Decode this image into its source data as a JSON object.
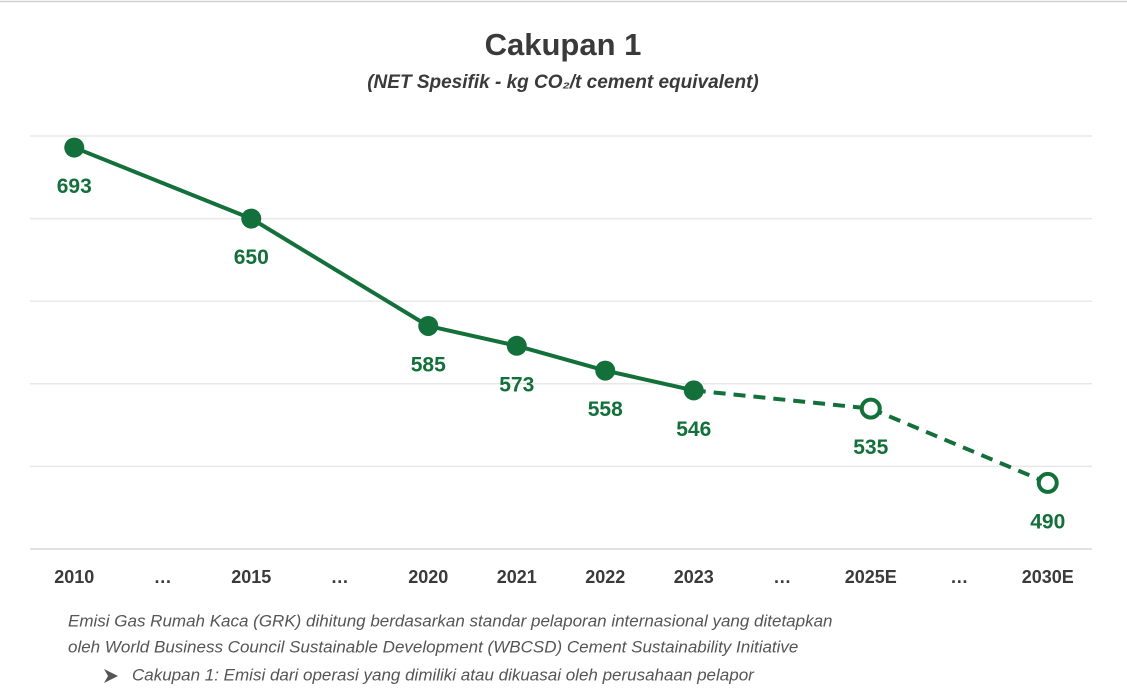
{
  "chart_data": {
    "type": "line",
    "title": "Cakupan 1",
    "subtitle": "(NET Spesifik - kg CO₂/t cement equivalent)",
    "categories": [
      "2010",
      "…",
      "2015",
      "…",
      "2020",
      "2021",
      "2022",
      "2023",
      "…",
      "2025E",
      "…",
      "2030E"
    ],
    "series": [
      {
        "color": "#13703a",
        "line_style": "solid",
        "marker": "filled",
        "values": [
          693,
          null,
          650,
          null,
          585,
          573,
          558,
          546,
          null,
          null,
          null,
          null
        ]
      },
      {
        "color": "#13703a",
        "line_style": "dashed",
        "marker": "hollow",
        "values": [
          null,
          null,
          null,
          null,
          null,
          null,
          null,
          null,
          null,
          535,
          null,
          490
        ]
      }
    ],
    "ylim": [
      450,
      700
    ],
    "yticks": [
      450,
      500,
      550,
      600,
      650,
      700
    ],
    "grid": true,
    "notes": [
      "Emisi Gas Rumah Kaca (GRK) dihitung berdasarkan standar pelaporan internasional yang ditetapkan",
      "oleh World Business Council Sustainable Development (WBCSD) Cement Sustainability Initiative"
    ],
    "bullet": "Cakupan 1: Emisi dari operasi yang dimiliki atau dikuasai oleh perusahaan pelapor"
  }
}
